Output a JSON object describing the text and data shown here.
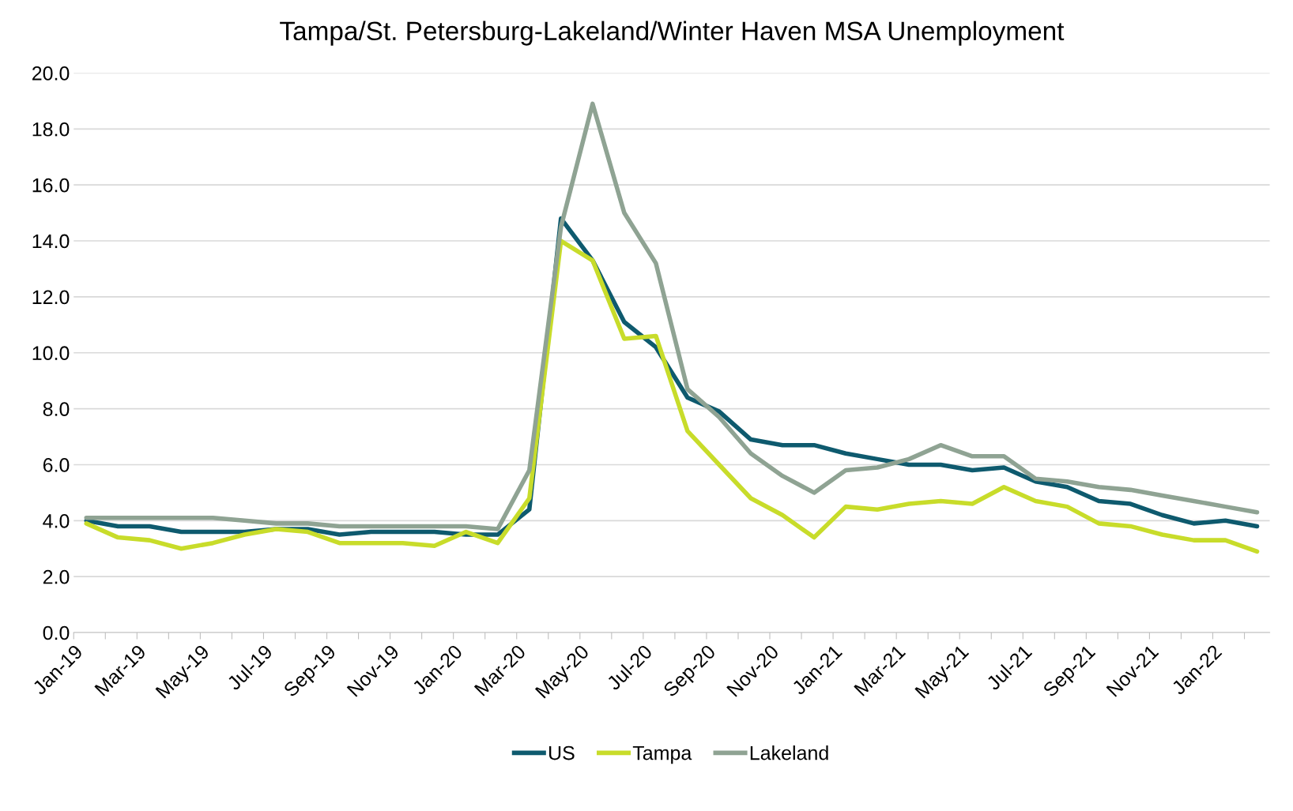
{
  "chart_data": {
    "type": "line",
    "title": "Tampa/St. Petersburg-Lakeland/Winter Haven MSA Unemployment",
    "categories": [
      "Jan-19",
      null,
      "Mar-19",
      null,
      "May-19",
      null,
      "Jul-19",
      null,
      "Sep-19",
      null,
      "Nov-19",
      null,
      "Jan-20",
      null,
      "Mar-20",
      null,
      "May-20",
      null,
      "Jul-20",
      null,
      "Sep-20",
      null,
      "Nov-20",
      null,
      "Jan-21",
      null,
      "Mar-21",
      null,
      "May-21",
      null,
      "Jul-21",
      null,
      "Sep-21",
      null,
      "Nov-21",
      null,
      "Jan-22",
      null
    ],
    "series": [
      {
        "name": "US",
        "color": "#0e5a6e",
        "values": [
          4.0,
          3.8,
          3.8,
          3.6,
          3.6,
          3.6,
          3.7,
          3.7,
          3.5,
          3.6,
          3.6,
          3.6,
          3.5,
          3.5,
          4.4,
          14.8,
          13.3,
          11.1,
          10.2,
          8.4,
          7.9,
          6.9,
          6.7,
          6.7,
          6.4,
          6.2,
          6.0,
          6.0,
          5.8,
          5.9,
          5.4,
          5.2,
          4.7,
          4.6,
          4.2,
          3.9,
          4.0,
          3.8
        ]
      },
      {
        "name": "Tampa",
        "color": "#c8dc2a",
        "values": [
          3.9,
          3.4,
          3.3,
          3.0,
          3.2,
          3.5,
          3.7,
          3.6,
          3.2,
          3.2,
          3.2,
          3.1,
          3.6,
          3.2,
          4.8,
          14.0,
          13.3,
          10.5,
          10.6,
          7.2,
          6.0,
          4.8,
          4.2,
          3.4,
          4.5,
          4.4,
          4.6,
          4.7,
          4.6,
          5.2,
          4.7,
          4.5,
          3.9,
          3.8,
          3.5,
          3.3,
          3.3,
          2.9
        ]
      },
      {
        "name": "Lakeland",
        "color": "#8fa393",
        "values": [
          4.1,
          4.1,
          4.1,
          4.1,
          4.1,
          4.0,
          3.9,
          3.9,
          3.8,
          3.8,
          3.8,
          3.8,
          3.8,
          3.7,
          5.8,
          14.5,
          18.9,
          15.0,
          13.2,
          8.7,
          7.7,
          6.4,
          5.6,
          5.0,
          5.8,
          5.9,
          6.2,
          6.7,
          6.3,
          6.3,
          5.5,
          5.4,
          5.2,
          5.1,
          4.9,
          4.7,
          4.5,
          4.3
        ]
      }
    ],
    "ylim": [
      0,
      20
    ],
    "yticks": [
      {
        "value": 0,
        "label": "0.0"
      },
      {
        "value": 2,
        "label": "2.0"
      },
      {
        "value": 4,
        "label": "4.0"
      },
      {
        "value": 6,
        "label": "6.0"
      },
      {
        "value": 8,
        "label": "8.0"
      },
      {
        "value": 10,
        "label": "10.0"
      },
      {
        "value": 12,
        "label": "12.0"
      },
      {
        "value": 14,
        "label": "14.0"
      },
      {
        "value": 16,
        "label": "16.0"
      },
      {
        "value": 18,
        "label": "18.0"
      },
      {
        "value": 20,
        "label": "20.0"
      }
    ],
    "grid": "y",
    "legend": "bottom",
    "marker": "none",
    "line_style": "solid"
  }
}
